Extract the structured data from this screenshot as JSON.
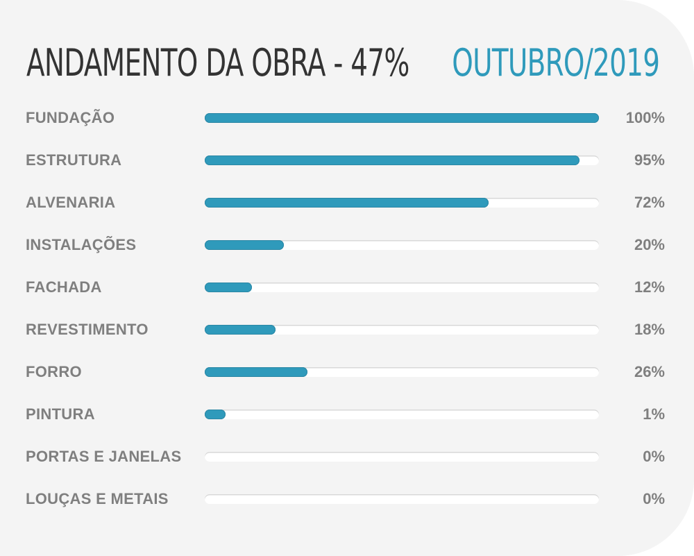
{
  "header": {
    "title": "ANDAMENTO DA OBRA - 47%",
    "date": "OUTUBRO/2019"
  },
  "colors": {
    "accent": "#2f9abb",
    "text_label": "#7f7f7f",
    "title": "#333333",
    "card_bg": "#f4f4f4",
    "track_bg": "#ffffff"
  },
  "rows": [
    {
      "label": "FUNDAÇÃO",
      "value": 100,
      "pct": "100%"
    },
    {
      "label": "ESTRUTURA",
      "value": 95,
      "pct": "95%"
    },
    {
      "label": "ALVENARIA",
      "value": 72,
      "pct": "72%"
    },
    {
      "label": "INSTALAÇÕES",
      "value": 20,
      "pct": "20%"
    },
    {
      "label": "FACHADA",
      "value": 12,
      "pct": "12%"
    },
    {
      "label": "REVESTIMENTO",
      "value": 18,
      "pct": "18%"
    },
    {
      "label": "FORRO",
      "value": 26,
      "pct": "26%"
    },
    {
      "label": "PINTURA",
      "value": 1,
      "pct": "1%"
    },
    {
      "label": "PORTAS E JANELAS",
      "value": 0,
      "pct": "0%"
    },
    {
      "label": "LOUÇAS E METAIS",
      "value": 0,
      "pct": "0%"
    }
  ],
  "chart_data": {
    "type": "bar",
    "orientation": "horizontal",
    "title": "ANDAMENTO DA OBRA - 47%",
    "subtitle": "OUTUBRO/2019",
    "categories": [
      "FUNDAÇÃO",
      "ESTRUTURA",
      "ALVENARIA",
      "INSTALAÇÕES",
      "FACHADA",
      "REVESTIMENTO",
      "FORRO",
      "PINTURA",
      "PORTAS E JANELAS",
      "LOUÇAS E METAIS"
    ],
    "values": [
      100,
      95,
      72,
      20,
      12,
      18,
      26,
      1,
      0,
      0
    ],
    "xlabel": "",
    "ylabel": "",
    "xlim": [
      0,
      100
    ],
    "unit": "%",
    "grid": false,
    "legend": null
  }
}
